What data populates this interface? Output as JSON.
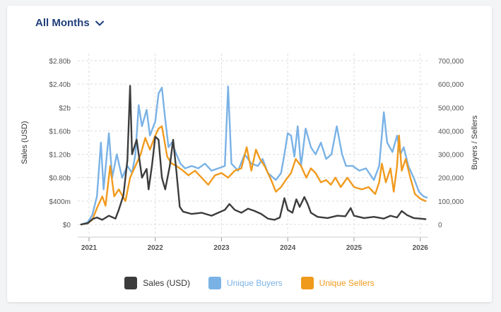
{
  "header": {
    "period_label": "All Months"
  },
  "colors": {
    "sales": "#3c3c3c",
    "buyers": "#7ab2e6",
    "sellers": "#f09a1d",
    "grid": "#dcdcdc",
    "axis_text": "#555555"
  },
  "chart_data": {
    "type": "line",
    "title": "",
    "xlabel": "",
    "ylabel_left": "Sales (USD)",
    "ylabel_right": "Buyers / Sellers",
    "x_range": [
      2020.83,
      2026.12
    ],
    "x_ticks": [
      2021,
      2022,
      2023,
      2024,
      2025,
      2026
    ],
    "x_tick_labels": [
      "2021",
      "2022",
      "2023",
      "2024",
      "2025",
      "2026"
    ],
    "y_left_range": [
      0,
      2800000000
    ],
    "y_left_ticks": [
      0,
      400000000,
      800000000,
      1200000000,
      1600000000,
      2000000000,
      2400000000,
      2800000000
    ],
    "y_left_tick_labels": [
      "$0",
      "$400m",
      "$0.80b",
      "$1.20b",
      "$1.60b",
      "$2b",
      "$2.40b",
      "$2.80b"
    ],
    "y_right_range": [
      0,
      700000
    ],
    "y_right_ticks": [
      0,
      100000,
      200000,
      300000,
      400000,
      500000,
      600000,
      700000
    ],
    "y_right_tick_labels": [
      "0",
      "100,000",
      "200,000",
      "300,000",
      "400,000",
      "500,000",
      "600,000",
      "700,000"
    ],
    "legend_position": "bottom",
    "series": [
      {
        "name": "Sales (USD)",
        "key": "sales",
        "axis": "left",
        "points": [
          [
            2020.88,
            0
          ],
          [
            2020.98,
            20000000
          ],
          [
            2021.05,
            90000000
          ],
          [
            2021.12,
            120000000
          ],
          [
            2021.2,
            80000000
          ],
          [
            2021.3,
            150000000
          ],
          [
            2021.4,
            100000000
          ],
          [
            2021.45,
            250000000
          ],
          [
            2021.52,
            500000000
          ],
          [
            2021.58,
            1100000000
          ],
          [
            2021.62,
            2370000000
          ],
          [
            2021.65,
            1200000000
          ],
          [
            2021.72,
            1450000000
          ],
          [
            2021.8,
            800000000
          ],
          [
            2021.87,
            950000000
          ],
          [
            2021.9,
            600000000
          ],
          [
            2021.95,
            1000000000
          ],
          [
            2022.0,
            1500000000
          ],
          [
            2022.05,
            1450000000
          ],
          [
            2022.1,
            800000000
          ],
          [
            2022.15,
            600000000
          ],
          [
            2022.22,
            1000000000
          ],
          [
            2022.27,
            1450000000
          ],
          [
            2022.32,
            900000000
          ],
          [
            2022.37,
            300000000
          ],
          [
            2022.42,
            220000000
          ],
          [
            2022.55,
            180000000
          ],
          [
            2022.7,
            200000000
          ],
          [
            2022.85,
            150000000
          ],
          [
            2022.95,
            200000000
          ],
          [
            2023.05,
            250000000
          ],
          [
            2023.12,
            350000000
          ],
          [
            2023.2,
            250000000
          ],
          [
            2023.3,
            200000000
          ],
          [
            2023.4,
            270000000
          ],
          [
            2023.5,
            230000000
          ],
          [
            2023.6,
            180000000
          ],
          [
            2023.7,
            100000000
          ],
          [
            2023.8,
            80000000
          ],
          [
            2023.88,
            120000000
          ],
          [
            2023.95,
            450000000
          ],
          [
            2024.0,
            250000000
          ],
          [
            2024.07,
            200000000
          ],
          [
            2024.13,
            430000000
          ],
          [
            2024.18,
            300000000
          ],
          [
            2024.25,
            470000000
          ],
          [
            2024.3,
            350000000
          ],
          [
            2024.35,
            200000000
          ],
          [
            2024.45,
            130000000
          ],
          [
            2024.6,
            110000000
          ],
          [
            2024.75,
            150000000
          ],
          [
            2024.87,
            140000000
          ],
          [
            2024.95,
            280000000
          ],
          [
            2025.0,
            150000000
          ],
          [
            2025.15,
            110000000
          ],
          [
            2025.3,
            130000000
          ],
          [
            2025.45,
            100000000
          ],
          [
            2025.55,
            150000000
          ],
          [
            2025.65,
            120000000
          ],
          [
            2025.72,
            230000000
          ],
          [
            2025.8,
            160000000
          ],
          [
            2025.9,
            110000000
          ],
          [
            2026.0,
            100000000
          ],
          [
            2026.08,
            90000000
          ]
        ]
      },
      {
        "name": "Unique Buyers",
        "key": "buyers",
        "axis": "right",
        "points": [
          [
            2020.88,
            0
          ],
          [
            2020.98,
            10000
          ],
          [
            2021.05,
            40000
          ],
          [
            2021.12,
            120000
          ],
          [
            2021.18,
            350000
          ],
          [
            2021.22,
            150000
          ],
          [
            2021.3,
            390000
          ],
          [
            2021.35,
            200000
          ],
          [
            2021.42,
            300000
          ],
          [
            2021.5,
            200000
          ],
          [
            2021.58,
            250000
          ],
          [
            2021.65,
            220000
          ],
          [
            2021.7,
            300000
          ],
          [
            2021.75,
            510000
          ],
          [
            2021.8,
            420000
          ],
          [
            2021.87,
            490000
          ],
          [
            2021.92,
            380000
          ],
          [
            2022.0,
            440000
          ],
          [
            2022.05,
            560000
          ],
          [
            2022.1,
            585000
          ],
          [
            2022.15,
            450000
          ],
          [
            2022.2,
            330000
          ],
          [
            2022.25,
            350000
          ],
          [
            2022.32,
            300000
          ],
          [
            2022.38,
            260000
          ],
          [
            2022.45,
            240000
          ],
          [
            2022.55,
            250000
          ],
          [
            2022.65,
            240000
          ],
          [
            2022.75,
            260000
          ],
          [
            2022.85,
            230000
          ],
          [
            2022.95,
            240000
          ],
          [
            2023.05,
            250000
          ],
          [
            2023.1,
            590000
          ],
          [
            2023.15,
            260000
          ],
          [
            2023.25,
            230000
          ],
          [
            2023.35,
            300000
          ],
          [
            2023.45,
            260000
          ],
          [
            2023.55,
            250000
          ],
          [
            2023.62,
            280000
          ],
          [
            2023.7,
            220000
          ],
          [
            2023.82,
            190000
          ],
          [
            2023.9,
            220000
          ],
          [
            2023.95,
            300000
          ],
          [
            2024.0,
            390000
          ],
          [
            2024.05,
            380000
          ],
          [
            2024.1,
            290000
          ],
          [
            2024.15,
            420000
          ],
          [
            2024.2,
            250000
          ],
          [
            2024.27,
            410000
          ],
          [
            2024.35,
            330000
          ],
          [
            2024.42,
            300000
          ],
          [
            2024.5,
            350000
          ],
          [
            2024.58,
            280000
          ],
          [
            2024.66,
            300000
          ],
          [
            2024.74,
            420000
          ],
          [
            2024.82,
            300000
          ],
          [
            2024.88,
            250000
          ],
          [
            2024.98,
            250000
          ],
          [
            2025.08,
            230000
          ],
          [
            2025.18,
            240000
          ],
          [
            2025.3,
            190000
          ],
          [
            2025.38,
            250000
          ],
          [
            2025.45,
            480000
          ],
          [
            2025.5,
            350000
          ],
          [
            2025.58,
            310000
          ],
          [
            2025.65,
            380000
          ],
          [
            2025.7,
            300000
          ],
          [
            2025.75,
            330000
          ],
          [
            2025.82,
            250000
          ],
          [
            2025.9,
            200000
          ],
          [
            2025.98,
            140000
          ],
          [
            2026.05,
            120000
          ],
          [
            2026.1,
            115000
          ]
        ]
      },
      {
        "name": "Unique Sellers",
        "key": "sellers",
        "axis": "right",
        "points": [
          [
            2020.88,
            0
          ],
          [
            2020.98,
            5000
          ],
          [
            2021.05,
            20000
          ],
          [
            2021.12,
            70000
          ],
          [
            2021.2,
            120000
          ],
          [
            2021.25,
            80000
          ],
          [
            2021.32,
            250000
          ],
          [
            2021.38,
            120000
          ],
          [
            2021.45,
            150000
          ],
          [
            2021.55,
            100000
          ],
          [
            2021.62,
            200000
          ],
          [
            2021.7,
            250000
          ],
          [
            2021.78,
            300000
          ],
          [
            2021.85,
            370000
          ],
          [
            2021.92,
            320000
          ],
          [
            2022.0,
            380000
          ],
          [
            2022.05,
            410000
          ],
          [
            2022.1,
            420000
          ],
          [
            2022.18,
            290000
          ],
          [
            2022.25,
            260000
          ],
          [
            2022.32,
            250000
          ],
          [
            2022.42,
            230000
          ],
          [
            2022.5,
            210000
          ],
          [
            2022.6,
            230000
          ],
          [
            2022.7,
            200000
          ],
          [
            2022.8,
            170000
          ],
          [
            2022.9,
            210000
          ],
          [
            2023.0,
            220000
          ],
          [
            2023.1,
            200000
          ],
          [
            2023.2,
            230000
          ],
          [
            2023.3,
            240000
          ],
          [
            2023.38,
            330000
          ],
          [
            2023.45,
            230000
          ],
          [
            2023.52,
            320000
          ],
          [
            2023.58,
            280000
          ],
          [
            2023.65,
            250000
          ],
          [
            2023.75,
            190000
          ],
          [
            2023.82,
            140000
          ],
          [
            2023.9,
            160000
          ],
          [
            2023.97,
            190000
          ],
          [
            2024.05,
            220000
          ],
          [
            2024.12,
            280000
          ],
          [
            2024.2,
            250000
          ],
          [
            2024.28,
            200000
          ],
          [
            2024.35,
            240000
          ],
          [
            2024.42,
            220000
          ],
          [
            2024.5,
            180000
          ],
          [
            2024.58,
            190000
          ],
          [
            2024.65,
            170000
          ],
          [
            2024.72,
            200000
          ],
          [
            2024.8,
            160000
          ],
          [
            2024.9,
            200000
          ],
          [
            2025.0,
            160000
          ],
          [
            2025.12,
            150000
          ],
          [
            2025.22,
            160000
          ],
          [
            2025.32,
            130000
          ],
          [
            2025.38,
            180000
          ],
          [
            2025.42,
            260000
          ],
          [
            2025.48,
            180000
          ],
          [
            2025.55,
            240000
          ],
          [
            2025.6,
            140000
          ],
          [
            2025.65,
            250000
          ],
          [
            2025.68,
            380000
          ],
          [
            2025.72,
            230000
          ],
          [
            2025.78,
            280000
          ],
          [
            2025.85,
            200000
          ],
          [
            2025.92,
            130000
          ],
          [
            2026.0,
            110000
          ],
          [
            2026.08,
            100000
          ]
        ]
      }
    ]
  }
}
